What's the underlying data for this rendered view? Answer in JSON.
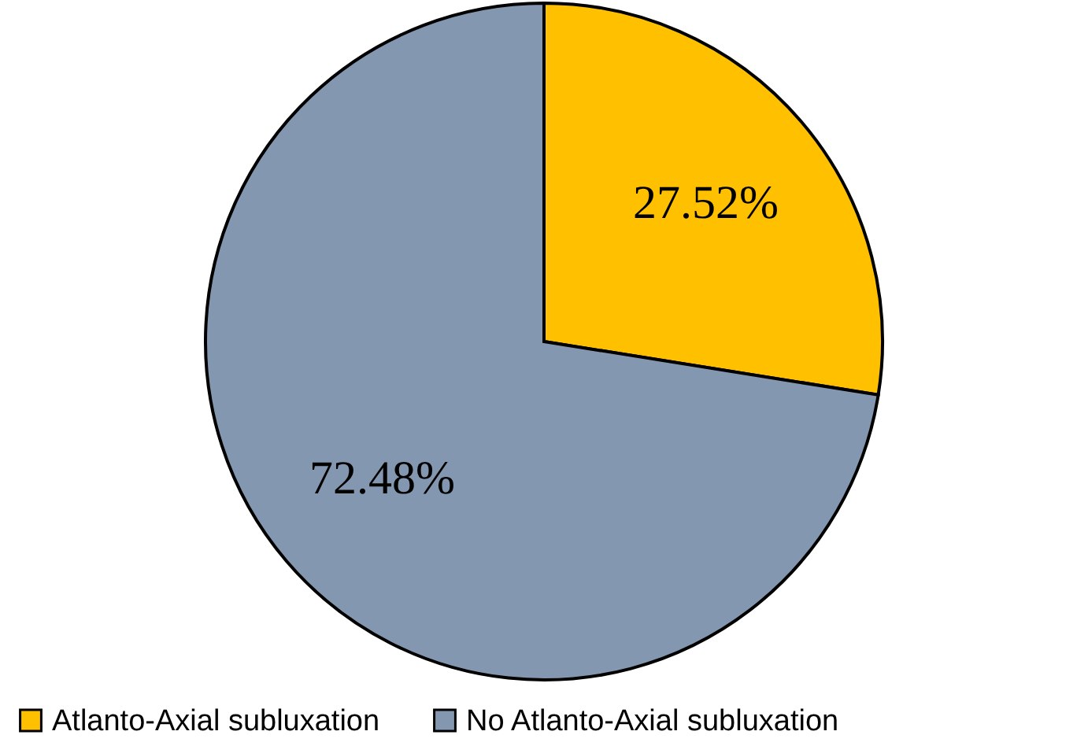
{
  "chart_data": {
    "type": "pie",
    "categories": [
      "Atlanto-Axial subluxation",
      "No Atlanto-Axial subluxation"
    ],
    "values": [
      27.52,
      72.48
    ],
    "colors": [
      "#ffc000",
      "#8497b0"
    ],
    "value_labels": [
      "27.52%",
      "72.48%"
    ],
    "legend": "bottom"
  }
}
